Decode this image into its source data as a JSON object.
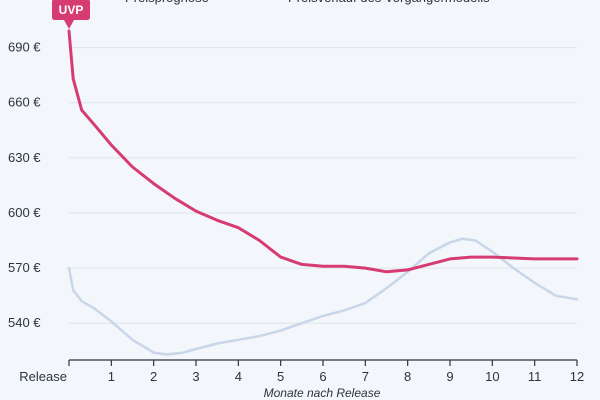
{
  "chart_data": {
    "type": "line",
    "title": "",
    "xlabel": "Monate nach Release",
    "ylabel": "",
    "x_ticks": [
      "Release",
      "1",
      "2",
      "3",
      "4",
      "5",
      "6",
      "7",
      "8",
      "9",
      "10",
      "11",
      "12"
    ],
    "y_ticks": [
      "690 €",
      "660 €",
      "630 €",
      "600 €",
      "570 €",
      "540 €"
    ],
    "y_tick_values": [
      690,
      660,
      630,
      600,
      570,
      540
    ],
    "xlim": [
      0,
      12
    ],
    "ylim": [
      520,
      705
    ],
    "grid": true,
    "legend_position": "top",
    "annotation": "UVP",
    "series": [
      {
        "name": "Preisprognose",
        "color": "#d63c72",
        "x": [
          0,
          0.1,
          0.3,
          0.6,
          1,
          1.5,
          2,
          2.5,
          3,
          3.5,
          4,
          4.5,
          5,
          5.5,
          6,
          6.5,
          7,
          7.5,
          8,
          8.5,
          9,
          9.5,
          10,
          10.5,
          11,
          11.5,
          12
        ],
        "values": [
          699,
          673,
          656,
          648,
          637,
          625,
          616,
          608,
          601,
          596,
          592,
          585,
          576,
          572,
          571,
          571,
          570,
          568,
          569,
          572,
          575,
          576,
          576,
          575.5,
          575,
          575,
          575
        ]
      },
      {
        "name": "Preisverlauf des Vorgängermodells",
        "color": "#c8d6e8",
        "x": [
          0,
          0.1,
          0.3,
          0.6,
          1,
          1.5,
          2,
          2.3,
          2.7,
          3,
          3.5,
          4,
          4.5,
          5,
          5.5,
          6,
          6.5,
          7,
          7.5,
          8,
          8.5,
          9,
          9.3,
          9.6,
          10,
          10.5,
          11,
          11.5,
          12
        ],
        "values": [
          570,
          558,
          552,
          548,
          541,
          531,
          524,
          523,
          524,
          526,
          529,
          531,
          533,
          536,
          540,
          544,
          547,
          551,
          559,
          568,
          578,
          584,
          586,
          585,
          579,
          570,
          562,
          555,
          553
        ]
      }
    ]
  }
}
